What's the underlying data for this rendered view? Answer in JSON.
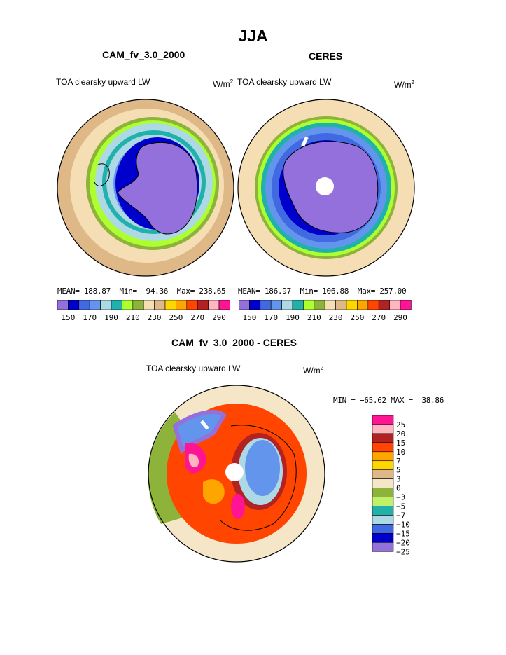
{
  "page": {
    "main_title": "JJA"
  },
  "colors": {
    "full_palette": [
      "#9370DB",
      "#0000CD",
      "#4169E1",
      "#6495ED",
      "#ADD8E6",
      "#20B2AA",
      "#ADFF2F",
      "#8DB33A",
      "#F5DEB3",
      "#DEB887",
      "#FFD700",
      "#FFA500",
      "#FF4500",
      "#B22222",
      "#FFB6C1",
      "#FF1493"
    ],
    "diff_palette": [
      "#9370DB",
      "#0000CD",
      "#4169E1",
      "#ADD8E6",
      "#20B2AA",
      "#C1F06A",
      "#8DB33A",
      "#F5E6C8",
      "#DEB887",
      "#FFD700",
      "#FFA500",
      "#FF4500",
      "#B22222",
      "#FFB6C1",
      "#FF1493"
    ],
    "land": "#DEB887",
    "continent": "#9370DB"
  },
  "chart_data": [
    {
      "type": "heatmap",
      "panel": "model",
      "title": "CAM_fv_3.0_2000",
      "left_label": "TOA clearsky upward LW",
      "units": "W/m",
      "units_sup": "2",
      "stats": {
        "mean": "188.87",
        "min": "94.36",
        "max": "238.65"
      },
      "stats_labels": {
        "mean": "MEAN=",
        "min": "Min=",
        "max": "Max="
      },
      "colorbar_ticks": [
        "150",
        "170",
        "190",
        "210",
        "230",
        "250",
        "270",
        "290"
      ]
    },
    {
      "type": "heatmap",
      "panel": "observation",
      "title": "CERES",
      "left_label": "TOA clearsky upward LW",
      "units": "W/m",
      "units_sup": "2",
      "stats": {
        "mean": "186.97",
        "min": "106.88",
        "max": "257.00"
      },
      "stats_labels": {
        "mean": "MEAN=",
        "min": "Min=",
        "max": "Max="
      },
      "colorbar_ticks": [
        "150",
        "170",
        "190",
        "210",
        "230",
        "250",
        "270",
        "290"
      ]
    },
    {
      "type": "heatmap",
      "panel": "difference",
      "title": "CAM_fv_3.0_2000 - CERES",
      "left_label": "TOA clearsky upward LW",
      "units": "W/m",
      "units_sup": "2",
      "minmax_text": "MIN = −65.62 MAX =  38.86",
      "colorbar_ticks": [
        "25",
        "20",
        "15",
        "10",
        "7",
        "5",
        "3",
        "0",
        "−3",
        "−5",
        "−7",
        "−10",
        "−15",
        "−20",
        "−25"
      ]
    }
  ]
}
